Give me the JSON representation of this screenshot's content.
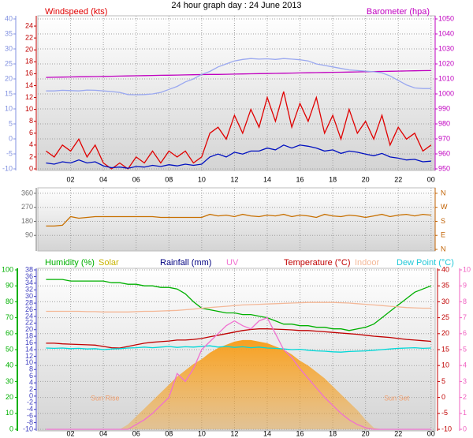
{
  "chart_data": [
    {
      "type": "line",
      "title": "24 hour graph day : 24 June 2013",
      "x": [
        0.5,
        1,
        1.5,
        2,
        2.5,
        3,
        3.5,
        4,
        4.5,
        5,
        5.5,
        6,
        6.5,
        7,
        7.5,
        8,
        8.5,
        9,
        9.5,
        10,
        10.5,
        11,
        11.5,
        12,
        12.5,
        13,
        13.5,
        14,
        14.5,
        15,
        15.5,
        16,
        16.5,
        17,
        17.5,
        18,
        18.5,
        19,
        19.5,
        20,
        20.5,
        21,
        21.5,
        22,
        22.5,
        23,
        23.5,
        24
      ],
      "xlim": [
        0,
        24.25
      ],
      "xticks": [
        {
          "value": 2,
          "label": "02"
        },
        {
          "value": 4,
          "label": "04"
        },
        {
          "value": 6,
          "label": "06"
        },
        {
          "value": 8,
          "label": "08"
        },
        10,
        12,
        14,
        16,
        18,
        20,
        22,
        {
          "value": 24,
          "label": "00"
        }
      ],
      "ylim": [
        0,
        25.2
      ],
      "yticks": [
        0,
        2,
        4,
        6,
        8,
        10,
        12,
        14,
        16,
        18,
        20,
        22,
        24
      ],
      "y2lim": [
        950,
        1050
      ],
      "y2ticks": [
        950,
        960,
        970,
        980,
        990,
        1000,
        1010,
        1020,
        1030,
        1040,
        1050
      ],
      "y3lim": [
        -10,
        40
      ],
      "y3ticks": [
        -10,
        -5,
        0,
        5,
        10,
        15,
        20,
        25,
        30,
        35,
        40
      ],
      "grid": true,
      "series": [
        {
          "name": "Windspeed (kts)",
          "color": "#e00000",
          "values": [
            3,
            2,
            4,
            3,
            5,
            2,
            4,
            1,
            0,
            1,
            0,
            2,
            1,
            3,
            1,
            3,
            2,
            3,
            1,
            2,
            6,
            7,
            5,
            9,
            6,
            10,
            7,
            12,
            8,
            13,
            7,
            11,
            8,
            12,
            6,
            9,
            5,
            10,
            6,
            8,
            5,
            9,
            4,
            7,
            5,
            6,
            3,
            4
          ]
        },
        {
          "color": "#0010c0",
          "values": [
            1,
            0.8,
            1.2,
            1,
            1.5,
            1,
            1.2,
            0.5,
            0.2,
            0.3,
            0.1,
            0.4,
            0.3,
            0.6,
            0.4,
            0.7,
            0.5,
            0.8,
            0.6,
            0.8,
            2,
            2.5,
            2,
            2.8,
            2.5,
            3,
            3,
            3.5,
            3.2,
            4,
            3.5,
            4,
            3.8,
            3.5,
            3,
            3.2,
            2.6,
            3,
            2.8,
            2.5,
            2.2,
            2.6,
            2,
            1.8,
            1.5,
            1.6,
            1.2,
            1.3
          ]
        },
        {
          "name": "Barometer (hpa)",
          "color": "#c000c0",
          "axis": "y2",
          "values": [
            1011,
            1011.1,
            1011.2,
            1011.3,
            1011.4,
            1011.5,
            1011.6,
            1011.7,
            1011.8,
            1011.9,
            1012,
            1012.1,
            1012.2,
            1012.3,
            1012.4,
            1012.5,
            1012.6,
            1012.7,
            1012.8,
            1012.9,
            1013,
            1013,
            1013.1,
            1013.2,
            1013.3,
            1013.4,
            1013.5,
            1013.6,
            1013.7,
            1013.8,
            1013.9,
            1014,
            1014.1,
            1014.2,
            1014.3,
            1014.4,
            1014.5,
            1014.6,
            1014.7,
            1014.8,
            1014.9,
            1015,
            1015.1,
            1015.2,
            1015.3,
            1015.4,
            1015.5,
            1015.6
          ]
        },
        {
          "color": "#9aa8f0",
          "axis": "y3",
          "values": [
            16,
            16,
            16.2,
            16.1,
            16,
            16.3,
            16.2,
            16,
            15.8,
            15.5,
            14.8,
            14.7,
            14.8,
            15,
            15.5,
            16.5,
            17.5,
            19,
            20,
            21.5,
            22.5,
            24,
            25,
            26,
            26.5,
            26.8,
            26.6,
            26.7,
            26.5,
            26.8,
            26.6,
            26.4,
            26,
            25,
            24.5,
            24,
            23.5,
            23,
            22.8,
            22.6,
            22.4,
            22,
            21,
            19.5,
            18,
            17,
            16.8,
            16.8
          ]
        }
      ]
    },
    {
      "type": "line",
      "x": [
        0.5,
        1,
        1.5,
        2,
        2.5,
        3,
        3.5,
        4,
        4.5,
        5,
        5.5,
        6,
        6.5,
        7,
        7.5,
        8,
        8.5,
        9,
        9.5,
        10,
        10.5,
        11,
        11.5,
        12,
        12.5,
        13,
        13.5,
        14,
        14.5,
        15,
        15.5,
        16,
        16.5,
        17,
        17.5,
        18,
        18.5,
        19,
        19.5,
        20,
        20.5,
        21,
        21.5,
        22,
        22.5,
        23,
        23.5,
        24
      ],
      "xlim": [
        0,
        24.25
      ],
      "xticks": [
        {
          "value": 2,
          "label": "02"
        },
        {
          "value": 4,
          "label": "04"
        },
        {
          "value": 6,
          "label": "06"
        },
        {
          "value": 8,
          "label": "08"
        },
        10,
        12,
        14,
        16,
        18,
        20,
        22,
        {
          "value": 24,
          "label": "00"
        }
      ],
      "ylim": [
        0,
        385
      ],
      "yticks": [
        90,
        180,
        270,
        360
      ],
      "y2lim": [
        0,
        385
      ],
      "y2ticks": [
        {
          "value": 0,
          "label": "N"
        },
        {
          "value": 90,
          "label": "E"
        },
        {
          "value": 180,
          "label": "S"
        },
        {
          "value": 270,
          "label": "W"
        },
        {
          "value": 360,
          "label": "N"
        }
      ],
      "grid": true,
      "series": [
        {
          "color": "#c87000",
          "values": [
            150,
            150,
            155,
            210,
            200,
            205,
            210,
            210,
            210,
            210,
            210,
            210,
            210,
            210,
            205,
            205,
            205,
            205,
            205,
            205,
            225,
            215,
            220,
            210,
            225,
            215,
            210,
            220,
            215,
            225,
            210,
            220,
            215,
            205,
            225,
            215,
            210,
            220,
            215,
            205,
            215,
            225,
            210,
            220,
            225,
            215,
            225,
            220
          ]
        }
      ]
    },
    {
      "type": "line",
      "x": [
        0.5,
        1,
        1.5,
        2,
        2.5,
        3,
        3.5,
        4,
        4.5,
        5,
        5.5,
        6,
        6.5,
        7,
        7.5,
        8,
        8.5,
        9,
        9.5,
        10,
        10.5,
        11,
        11.5,
        12,
        12.5,
        13,
        13.5,
        14,
        14.5,
        15,
        15.5,
        16,
        16.5,
        17,
        17.5,
        18,
        18.5,
        19,
        19.5,
        20,
        20.5,
        21,
        21.5,
        22,
        22.5,
        23,
        23.5,
        24
      ],
      "xlim": [
        0,
        24.25
      ],
      "xticks": [
        {
          "value": 2,
          "label": "02"
        },
        {
          "value": 4,
          "label": "04"
        },
        {
          "value": 6,
          "label": "06"
        },
        {
          "value": 8,
          "label": "08"
        },
        10,
        12,
        14,
        16,
        18,
        20,
        22,
        {
          "value": 24,
          "label": "00"
        }
      ],
      "ylim": [
        0,
        100
      ],
      "yticks": [
        0,
        10,
        20,
        30,
        40,
        50,
        60,
        70,
        80,
        90,
        100
      ],
      "y2lim": [
        -10,
        40
      ],
      "y2ticks": [
        -10,
        -5,
        0,
        5,
        10,
        15,
        20,
        25,
        30,
        35,
        40
      ],
      "y3lim": [
        -10,
        38
      ],
      "y3ticks": [
        -10,
        -8,
        -6,
        -4,
        -2,
        0,
        2,
        4,
        6,
        8,
        10,
        12,
        14,
        16,
        18,
        20,
        22,
        24,
        26,
        28,
        30,
        32,
        34,
        36,
        38
      ],
      "y4lim": [
        0,
        10
      ],
      "y4ticks": [
        0,
        1,
        2,
        3,
        4,
        5,
        6,
        7,
        8,
        9,
        10
      ],
      "grid": true,
      "labels": [
        "Rainfall (mm)"
      ],
      "annotations": [
        {
          "text": "Sun Rise",
          "x": 4.1
        },
        {
          "text": "Sun Set",
          "x": 21.9
        }
      ],
      "series": [
        {
          "name": "Solar",
          "type": "area",
          "color": "#f7a020",
          "values": [
            0,
            0,
            0,
            0,
            0,
            0,
            0,
            0,
            0,
            0,
            3,
            8,
            13,
            18,
            23,
            28,
            33,
            37,
            41,
            44,
            48,
            51,
            53,
            55,
            56,
            56,
            55,
            54,
            52,
            50,
            47,
            43,
            40,
            36,
            32,
            27,
            22,
            17,
            12,
            6,
            1,
            0,
            0,
            0,
            0,
            0,
            0,
            0
          ]
        },
        {
          "name": "Humidity (%)",
          "color": "#00b000",
          "values": [
            94,
            94,
            94,
            93,
            93,
            93,
            93,
            93,
            92,
            92,
            91,
            91,
            90,
            90,
            89,
            89,
            88,
            85,
            80,
            76,
            75,
            74,
            73,
            73,
            72,
            72,
            71,
            70,
            68,
            66,
            66,
            65,
            65,
            64,
            64,
            63,
            63,
            62,
            63,
            64,
            66,
            70,
            74,
            78,
            82,
            86,
            88,
            90
          ]
        },
        {
          "name": "Temperature (°C)",
          "color": "#c00000",
          "axis": "y2",
          "values": [
            17,
            17,
            16.8,
            16.7,
            16.6,
            16.5,
            16.4,
            16,
            15.6,
            15.5,
            16,
            16.5,
            17,
            17.3,
            17.5,
            17.7,
            18,
            18,
            18.2,
            18.5,
            19,
            19.5,
            20,
            20.5,
            21,
            21.3,
            21.5,
            21.5,
            21.4,
            21.3,
            21.2,
            21,
            21,
            20.8,
            20.6,
            20.4,
            20.2,
            20,
            19.8,
            19.5,
            19.2,
            19,
            18.8,
            18.5,
            18.2,
            18,
            17.8,
            17.6
          ]
        },
        {
          "name": "Indoor",
          "color": "#f4b898",
          "axis": "y2",
          "values": [
            27,
            27,
            27,
            27,
            27,
            26.9,
            26.9,
            26.8,
            26.8,
            26.8,
            26.8,
            26.9,
            27,
            27,
            27.1,
            27.2,
            27.3,
            27.5,
            27.7,
            28,
            28.2,
            28.4,
            28.6,
            28.8,
            29,
            29.1,
            29.2,
            29.3,
            29.4,
            29.5,
            29.6,
            29.7,
            29.8,
            29.8,
            29.8,
            29.8,
            29.7,
            29.6,
            29.4,
            29.2,
            29,
            28.8,
            28.6,
            28.4,
            28.2,
            28.1,
            28,
            28
          ]
        },
        {
          "name": "Dew Point (°C)",
          "color": "#00d8d8",
          "axis": "y2",
          "values": [
            15.5,
            15.4,
            15.5,
            15.3,
            15.4,
            15.2,
            15.3,
            15,
            15.2,
            15.3,
            15.5,
            15.6,
            15.8,
            15.6,
            15.8,
            16,
            15.7,
            15.9,
            15.8,
            16,
            16.2,
            15.8,
            16,
            15.7,
            15.9,
            15.6,
            15.8,
            15.5,
            15.4,
            15.2,
            15,
            15.1,
            14.8,
            14.6,
            14.5,
            14.3,
            14.2,
            14.4,
            14.5,
            14.6,
            14.8,
            15,
            15.2,
            15.4,
            15.5,
            15.6,
            15.4,
            15.5
          ]
        },
        {
          "name": "UV",
          "color": "#f070d0",
          "axis": "y4",
          "values": [
            0,
            0,
            0,
            0,
            0,
            0,
            0,
            0,
            0,
            0,
            0,
            0.3,
            0.6,
            1,
            1.5,
            2,
            3.5,
            3,
            3.8,
            5,
            5.5,
            6,
            6.5,
            6.8,
            6.5,
            6.3,
            6.8,
            7,
            6,
            5,
            4.5,
            3.8,
            3.2,
            2.6,
            2,
            1.5,
            1,
            0.6,
            0.3,
            0.1,
            0,
            0,
            0,
            0,
            0,
            0,
            0,
            0
          ]
        }
      ]
    }
  ]
}
